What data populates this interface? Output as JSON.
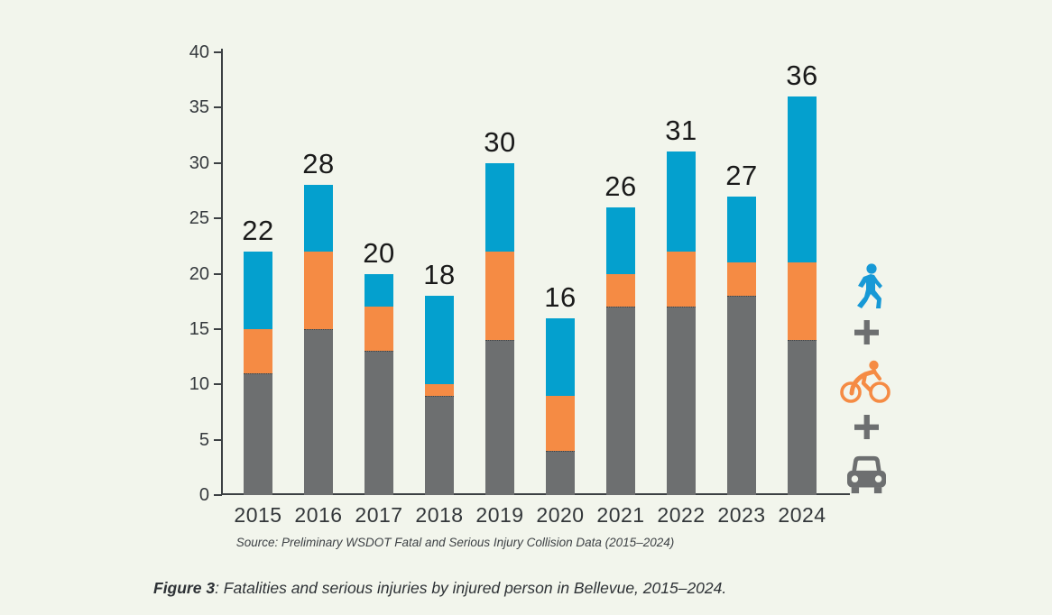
{
  "background_color": "#f2f5ec",
  "chart_data": {
    "type": "bar",
    "subtype": "stacked-vertical",
    "title": "",
    "xlabel": "",
    "ylabel": "",
    "categories": [
      "2015",
      "2016",
      "2017",
      "2018",
      "2019",
      "2020",
      "2021",
      "2022",
      "2023",
      "2024"
    ],
    "series": [
      {
        "name": "car-occupant",
        "color": "#6d6f70",
        "values": [
          11,
          15,
          13,
          9,
          14,
          4,
          17,
          17,
          18,
          14
        ]
      },
      {
        "name": "bicyclist",
        "color": "#f58b44",
        "values": [
          4,
          7,
          4,
          1,
          8,
          5,
          3,
          5,
          3,
          7
        ]
      },
      {
        "name": "pedestrian",
        "color": "#04a0ce",
        "values": [
          7,
          6,
          3,
          8,
          8,
          7,
          6,
          9,
          6,
          15
        ]
      }
    ],
    "totals": [
      22,
      28,
      20,
      18,
      30,
      16,
      26,
      31,
      27,
      36
    ],
    "ylim": [
      0,
      40
    ],
    "ytick_step": 5,
    "yticks": [
      0,
      5,
      10,
      15,
      20,
      25,
      30,
      35,
      40
    ],
    "grid": "off",
    "legend_position": "right",
    "source": "Source: Preliminary WSDOT Fatal and Serious Injury Collision Data (2015–2024)"
  },
  "legend": {
    "pedestrian_color": "#1799d6",
    "bicyclist_color": "#f58b44",
    "car_color": "#6d6f70",
    "plus_color": "#6d6f70"
  },
  "caption": {
    "label": "Figure 3",
    "text": ": Fatalities and serious injuries by injured person in Bellevue, 2015–2024."
  },
  "axis_color": "#3c4043",
  "total_label_color": "#1a1a1a"
}
